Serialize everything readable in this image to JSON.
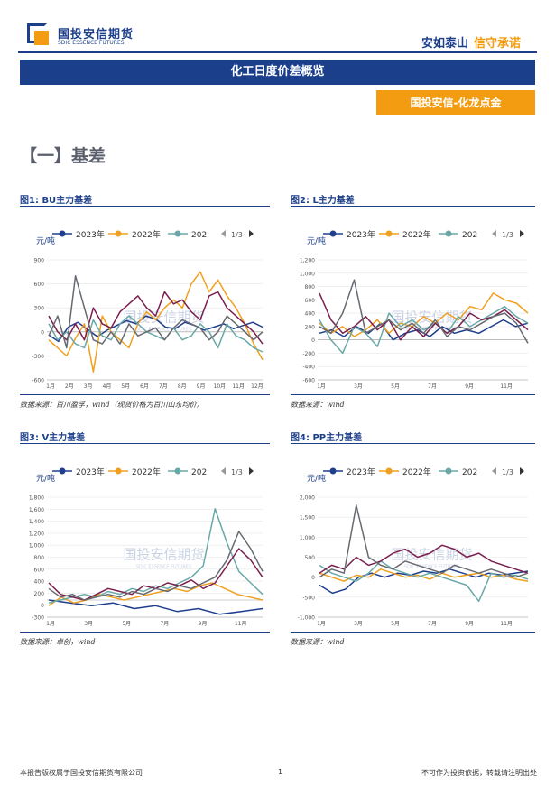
{
  "header": {
    "logo_cn": "国投安信期货",
    "logo_en": "SDIC ESSENCE FUTURES",
    "slogan_a": "安如泰山",
    "slogan_b": "信守承诺"
  },
  "title_bar": "化工日度价差概览",
  "tag": "国投安信-化龙点金",
  "section": "【一】基差",
  "watermark": "国投安信期货",
  "watermark_en": "SDIC ESSENCE FUTURES",
  "colors": {
    "y2023": "#1f3e8d",
    "y2022": "#f0a020",
    "y202x": "#6aa8a8",
    "s4": "#7a1f4e",
    "s5": "#666a70",
    "brand_blue": "#1c3f8a",
    "brand_orange": "#f39c12"
  },
  "footer": {
    "left": "本报告版权属于国投安信期货有限公司",
    "page": "1",
    "right": "不可作为投资依据，转载请注明出处"
  },
  "chart_data": [
    {
      "type": "line",
      "fig_label": "图1:  BU主力基差",
      "source": "数据来源：百川盈孚，wind（现货价格为百川山东均价）",
      "unit": "元/吨",
      "legend": [
        "2023年",
        "2022年",
        "202"
      ],
      "legend_page": "1/3",
      "ylim": [
        -600,
        900
      ],
      "yticks": [
        "900",
        "600",
        "300",
        "0",
        "-300",
        "-600"
      ],
      "xticks": [
        "1月",
        "2月",
        "3月",
        "4月",
        "5月",
        "6月",
        "7月",
        "8月",
        "9月",
        "10月",
        "11月",
        "12月"
      ],
      "series": [
        {
          "name": "2023年",
          "color": "#1f3e8d",
          "values": [
            -40,
            -120,
            60,
            120,
            30,
            -60,
            20,
            80,
            140,
            100,
            200,
            160,
            60,
            40,
            120,
            80,
            20,
            60,
            100,
            40,
            80,
            120,
            60
          ]
        },
        {
          "name": "2022年",
          "color": "#f0a020",
          "values": [
            -100,
            -200,
            -300,
            -80,
            100,
            -500,
            200,
            0,
            -100,
            -200,
            100,
            250,
            150,
            300,
            400,
            300,
            600,
            750,
            500,
            650,
            450,
            300,
            100,
            -150,
            -350
          ]
        },
        {
          "name": "202",
          "color": "#6aa8a8",
          "values": [
            100,
            -100,
            0,
            -150,
            -200,
            150,
            -50,
            -100,
            100,
            200,
            100,
            0,
            -50,
            -100,
            50,
            -100,
            -50,
            100,
            0,
            -200,
            100,
            -50,
            -100,
            -200,
            -250
          ]
        },
        {
          "values": [
            200,
            0,
            -100,
            100,
            -100,
            300,
            100,
            50,
            250,
            350,
            450,
            300,
            200,
            500,
            350,
            400,
            250,
            150,
            450,
            500,
            300,
            200,
            100,
            0,
            -150
          ]
        },
        {
          "values": [
            -50,
            200,
            -200,
            700,
            300,
            -100,
            -150,
            0,
            -150,
            100,
            -50,
            0,
            50,
            -100,
            50,
            150,
            100,
            50,
            -100,
            0,
            200,
            100,
            0,
            -100,
            0
          ]
        }
      ]
    },
    {
      "type": "line",
      "fig_label": "图2:  L主力基差",
      "source": "数据来源：wind",
      "unit": "元/吨",
      "legend": [
        "2023年",
        "2022年",
        "202"
      ],
      "legend_page": "1/3",
      "ylim": [
        -600,
        1200
      ],
      "yticks": [
        "1,200",
        "1,000",
        "800",
        "600",
        "400",
        "200",
        "0",
        "-200",
        "-400",
        "-600"
      ],
      "xticks": [
        "1月",
        "3月",
        "5月",
        "7月",
        "9月",
        "11月"
      ],
      "series": [
        {
          "name": "2023年",
          "color": "#1f3e8d",
          "values": [
            100,
            150,
            50,
            200,
            100,
            250,
            0,
            100,
            150,
            50,
            200,
            100,
            150,
            100,
            200,
            300,
            200,
            250
          ]
        },
        {
          "name": "2022年",
          "color": "#f0a020",
          "values": [
            250,
            100,
            200,
            50,
            150,
            300,
            100,
            250,
            200,
            350,
            250,
            400,
            300,
            500,
            450,
            700,
            600,
            550,
            400
          ]
        },
        {
          "name": "202",
          "color": "#6aa8a8",
          "values": [
            300,
            0,
            -200,
            200,
            100,
            -100,
            400,
            200,
            300,
            150,
            250,
            100,
            350,
            200,
            300,
            400,
            500,
            350,
            250
          ]
        },
        {
          "values": [
            700,
            300,
            100,
            200,
            350,
            150,
            300,
            0,
            200,
            50,
            250,
            100,
            200,
            400,
            300,
            350,
            450,
            300,
            150
          ]
        },
        {
          "values": [
            200,
            100,
            400,
            900,
            100,
            200,
            300,
            150,
            250,
            100,
            300,
            50,
            200,
            150,
            250,
            350,
            400,
            250,
            -50
          ]
        }
      ]
    },
    {
      "type": "line",
      "fig_label": "图3:  V主力基差",
      "source": "数据来源：卓创，wind",
      "unit": "元/吨",
      "legend": [
        "2023年",
        "2022年",
        "202"
      ],
      "legend_page": "1/3",
      "ylim": [
        -300,
        1800
      ],
      "yticks": [
        "1,800",
        "1,600",
        "1,400",
        "1,200",
        "1,000",
        "800",
        "600",
        "400",
        "200",
        "0",
        "-300"
      ],
      "xticks": [
        "1月",
        "3月",
        "5月",
        "7月",
        "9月",
        "11月"
      ],
      "series": [
        {
          "name": "2023年",
          "color": "#1f3e8d",
          "values": [
            0,
            -50,
            -100,
            -50,
            -150,
            -100,
            -200,
            -150,
            -250,
            -200,
            -150
          ]
        },
        {
          "name": "2022年",
          "color": "#f0a020",
          "values": [
            -100,
            50,
            -50,
            0,
            100,
            50,
            0,
            50,
            100,
            150,
            200,
            150,
            250,
            300,
            200,
            100,
            50,
            0
          ]
        },
        {
          "name": "202",
          "color": "#6aa8a8",
          "values": [
            -50,
            0,
            50,
            100,
            50,
            150,
            100,
            200,
            150,
            250,
            200,
            300,
            400,
            600,
            1600,
            1000,
            500,
            300,
            100
          ]
        },
        {
          "values": [
            300,
            100,
            50,
            0,
            100,
            200,
            150,
            100,
            250,
            200,
            300,
            250,
            350,
            200,
            300,
            600,
            900,
            700,
            400
          ]
        },
        {
          "values": [
            200,
            50,
            100,
            0,
            50,
            100,
            50,
            150,
            100,
            200,
            150,
            250,
            200,
            300,
            400,
            700,
            1200,
            900,
            500
          ]
        }
      ]
    },
    {
      "type": "line",
      "fig_label": "图4:  PP主力基差",
      "source": "数据来源：wind",
      "unit": "元/吨",
      "legend": [
        "2023年",
        "2022年",
        "202"
      ],
      "legend_page": "1/3",
      "ylim": [
        -1000,
        2000
      ],
      "yticks": [
        "2,000",
        "1,500",
        "1,000",
        "500",
        "0",
        "-500",
        "-1,000"
      ],
      "xticks": [
        "1月",
        "3月",
        "5月",
        "7月",
        "9月",
        "11月"
      ],
      "series": [
        {
          "name": "2023年",
          "color": "#1f3e8d",
          "values": [
            -200,
            -400,
            -300,
            0,
            100,
            0,
            100,
            50,
            150,
            100,
            200,
            100,
            0,
            100,
            50,
            100,
            150
          ]
        },
        {
          "name": "2022年",
          "color": "#f0a020",
          "values": [
            100,
            0,
            -100,
            50,
            0,
            200,
            100,
            0,
            50,
            -50,
            100,
            0,
            50,
            100,
            0,
            50,
            -50,
            -100
          ]
        },
        {
          "name": "202",
          "color": "#6aa8a8",
          "values": [
            300,
            100,
            0,
            -100,
            100,
            400,
            200,
            100,
            0,
            100,
            0,
            -100,
            -200,
            -600,
            100,
            0,
            50,
            -50
          ]
        },
        {
          "values": [
            100,
            300,
            200,
            500,
            300,
            400,
            600,
            700,
            500,
            600,
            800,
            700,
            500,
            600,
            400,
            300,
            200,
            100
          ]
        },
        {
          "values": [
            0,
            200,
            100,
            1800,
            500,
            300,
            200,
            400,
            300,
            200,
            100,
            300,
            200,
            100,
            200,
            100,
            0,
            100
          ]
        }
      ]
    }
  ]
}
